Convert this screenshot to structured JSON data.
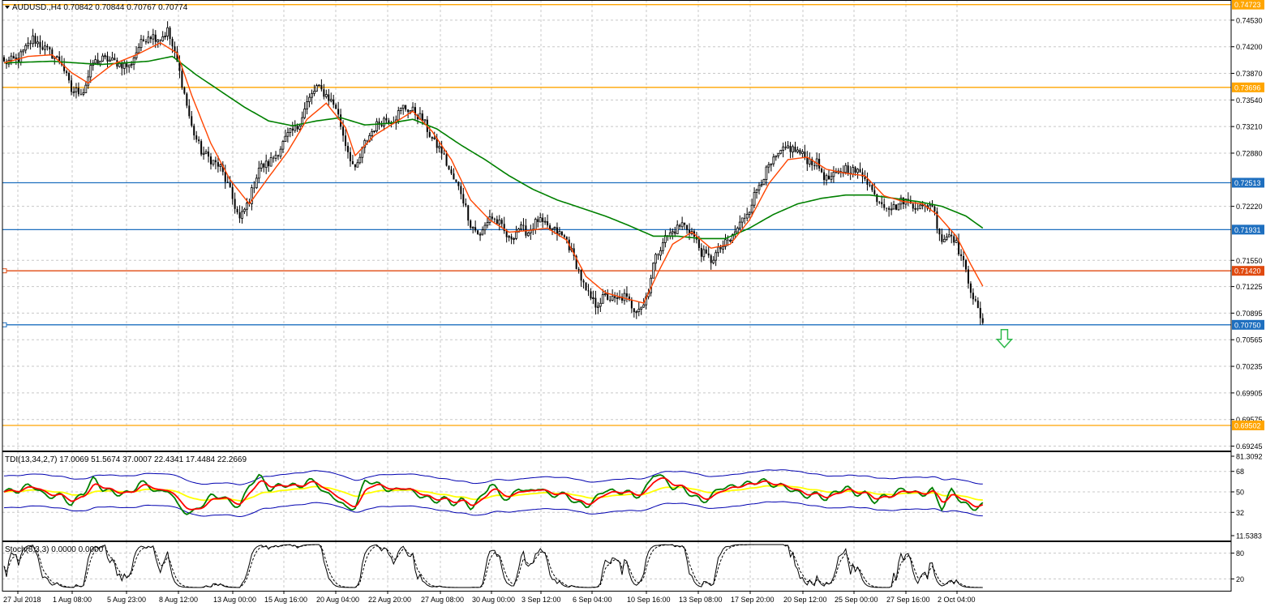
{
  "window": {
    "symbol_title": "AUDUSD.,H4  0.70842 0.70844 0.70767 0.70774"
  },
  "colors": {
    "background": "#ffffff",
    "grid": "#c8c8c8",
    "candle": "#000000",
    "ema_fast": "#ff4500",
    "ma_slow": "#008000",
    "level_orange": "#ffa500",
    "level_blue": "#1e6fbf",
    "level_red": "#e04a10",
    "tdi_band": "#0000b0",
    "tdi_signal": "#ffff00",
    "tdi_rsi_fast": "#008000",
    "tdi_rsi_slow": "#ff0000",
    "arrow": "#2db84a"
  },
  "chart_data": {
    "type": "candlestick",
    "symbol": "AUDUSD.",
    "timeframe": "H4",
    "ohlc_last": {
      "open": 0.70842,
      "high": 0.70844,
      "low": 0.70767,
      "close": 0.70774
    },
    "x_ticks": [
      "27 Jul 2018",
      "1 Aug 08:00",
      "5 Aug 23:00",
      "8 Aug 12:00",
      "13 Aug 00:00",
      "15 Aug 16:00",
      "20 Aug 04:00",
      "22 Aug 20:00",
      "27 Aug 08:00",
      "30 Aug 00:00",
      "3 Sep 12:00",
      "6 Sep 04:00",
      "10 Sep 16:00",
      "13 Sep 08:00",
      "17 Sep 20:00",
      "20 Sep 12:00",
      "25 Sep 00:00",
      "27 Sep 16:00",
      "2 Oct 04:00"
    ],
    "y_ticks": [
      "0.74530",
      "0.74200",
      "0.73870",
      "0.73540",
      "0.73210",
      "0.72880",
      "0.72220",
      "0.71550",
      "0.71225",
      "0.70895",
      "0.70565",
      "0.70235",
      "0.69905",
      "0.69575",
      "0.69245"
    ],
    "ylim": [
      0.6919,
      0.7478
    ],
    "levels": [
      {
        "label": "0.74723",
        "value": 0.74723,
        "color": "#ffa500"
      },
      {
        "label": "0.73696",
        "value": 0.73696,
        "color": "#ffa500"
      },
      {
        "label": "0.72513",
        "value": 0.72513,
        "color": "#1e6fbf"
      },
      {
        "label": "0.71931",
        "value": 0.71931,
        "color": "#1e6fbf"
      },
      {
        "label": "0.71420",
        "value": 0.7142,
        "color": "#e04a10"
      },
      {
        "label": "0.70750",
        "value": 0.7075,
        "color": "#1e6fbf"
      },
      {
        "label": "0.69502",
        "value": 0.69502,
        "color": "#ffa500"
      }
    ],
    "close_anchors": [
      [
        0,
        0.74
      ],
      [
        6,
        0.7405
      ],
      [
        12,
        0.743
      ],
      [
        18,
        0.7415
      ],
      [
        24,
        0.74
      ],
      [
        28,
        0.7365
      ],
      [
        33,
        0.7365
      ],
      [
        37,
        0.74
      ],
      [
        42,
        0.7405
      ],
      [
        47,
        0.74
      ],
      [
        52,
        0.7395
      ],
      [
        56,
        0.742
      ],
      [
        60,
        0.7435
      ],
      [
        65,
        0.743
      ],
      [
        68,
        0.744
      ],
      [
        72,
        0.74
      ],
      [
        74,
        0.7375
      ],
      [
        78,
        0.732
      ],
      [
        82,
        0.729
      ],
      [
        86,
        0.728
      ],
      [
        90,
        0.727
      ],
      [
        94,
        0.724
      ],
      [
        98,
        0.7205
      ],
      [
        102,
        0.723
      ],
      [
        106,
        0.727
      ],
      [
        110,
        0.7275
      ],
      [
        114,
        0.729
      ],
      [
        118,
        0.731
      ],
      [
        122,
        0.732
      ],
      [
        126,
        0.735
      ],
      [
        130,
        0.737
      ],
      [
        134,
        0.736
      ],
      [
        138,
        0.7345
      ],
      [
        142,
        0.73
      ],
      [
        146,
        0.7265
      ],
      [
        150,
        0.73
      ],
      [
        154,
        0.732
      ],
      [
        158,
        0.733
      ],
      [
        162,
        0.733
      ],
      [
        166,
        0.7345
      ],
      [
        170,
        0.734
      ],
      [
        174,
        0.733
      ],
      [
        178,
        0.7305
      ],
      [
        182,
        0.729
      ],
      [
        186,
        0.726
      ],
      [
        190,
        0.724
      ],
      [
        194,
        0.72
      ],
      [
        198,
        0.7185
      ],
      [
        202,
        0.721
      ],
      [
        206,
        0.72
      ],
      [
        210,
        0.718
      ],
      [
        214,
        0.7195
      ],
      [
        218,
        0.719
      ],
      [
        222,
        0.7205
      ],
      [
        226,
        0.7195
      ],
      [
        230,
        0.719
      ],
      [
        234,
        0.718
      ],
      [
        238,
        0.715
      ],
      [
        242,
        0.7115
      ],
      [
        246,
        0.71
      ],
      [
        250,
        0.711
      ],
      [
        254,
        0.7105
      ],
      [
        258,
        0.711
      ],
      [
        262,
        0.7095
      ],
      [
        266,
        0.71
      ],
      [
        268,
        0.712
      ],
      [
        270,
        0.715
      ],
      [
        274,
        0.718
      ],
      [
        278,
        0.719
      ],
      [
        282,
        0.72
      ],
      [
        286,
        0.719
      ],
      [
        290,
        0.7165
      ],
      [
        294,
        0.7155
      ],
      [
        298,
        0.717
      ],
      [
        302,
        0.718
      ],
      [
        306,
        0.72
      ],
      [
        310,
        0.722
      ],
      [
        314,
        0.725
      ],
      [
        318,
        0.727
      ],
      [
        322,
        0.7285
      ],
      [
        326,
        0.7295
      ],
      [
        330,
        0.729
      ],
      [
        334,
        0.728
      ],
      [
        338,
        0.7275
      ],
      [
        342,
        0.7255
      ],
      [
        346,
        0.726
      ],
      [
        350,
        0.727
      ],
      [
        354,
        0.7265
      ],
      [
        358,
        0.726
      ],
      [
        362,
        0.7235
      ],
      [
        366,
        0.7225
      ],
      [
        370,
        0.722
      ],
      [
        374,
        0.723
      ],
      [
        378,
        0.7225
      ],
      [
        382,
        0.722
      ],
      [
        386,
        0.7225
      ],
      [
        388,
        0.72
      ],
      [
        390,
        0.718
      ],
      [
        394,
        0.719
      ],
      [
        398,
        0.716
      ],
      [
        402,
        0.712
      ],
      [
        404,
        0.71
      ],
      [
        406,
        0.7085
      ],
      [
        407,
        0.70774
      ]
    ],
    "ema_fast_anchors": [
      [
        0,
        0.74
      ],
      [
        10,
        0.7408
      ],
      [
        20,
        0.741
      ],
      [
        28,
        0.7388
      ],
      [
        35,
        0.7375
      ],
      [
        45,
        0.7398
      ],
      [
        55,
        0.741
      ],
      [
        65,
        0.7425
      ],
      [
        72,
        0.7412
      ],
      [
        78,
        0.736
      ],
      [
        86,
        0.73
      ],
      [
        94,
        0.7255
      ],
      [
        102,
        0.7225
      ],
      [
        110,
        0.7258
      ],
      [
        118,
        0.729
      ],
      [
        126,
        0.733
      ],
      [
        134,
        0.735
      ],
      [
        142,
        0.732
      ],
      [
        146,
        0.7285
      ],
      [
        154,
        0.731
      ],
      [
        162,
        0.7325
      ],
      [
        170,
        0.734
      ],
      [
        178,
        0.7315
      ],
      [
        186,
        0.728
      ],
      [
        194,
        0.723
      ],
      [
        202,
        0.7205
      ],
      [
        210,
        0.719
      ],
      [
        218,
        0.7192
      ],
      [
        226,
        0.7195
      ],
      [
        234,
        0.718
      ],
      [
        242,
        0.7135
      ],
      [
        250,
        0.7115
      ],
      [
        258,
        0.7108
      ],
      [
        266,
        0.7102
      ],
      [
        272,
        0.714
      ],
      [
        278,
        0.7175
      ],
      [
        286,
        0.719
      ],
      [
        294,
        0.717
      ],
      [
        302,
        0.7175
      ],
      [
        310,
        0.7205
      ],
      [
        318,
        0.725
      ],
      [
        326,
        0.728
      ],
      [
        334,
        0.7283
      ],
      [
        342,
        0.7268
      ],
      [
        350,
        0.7263
      ],
      [
        358,
        0.726
      ],
      [
        366,
        0.7235
      ],
      [
        374,
        0.7228
      ],
      [
        382,
        0.7225
      ],
      [
        388,
        0.7212
      ],
      [
        396,
        0.7185
      ],
      [
        402,
        0.715
      ],
      [
        407,
        0.7123
      ]
    ],
    "ma_slow_anchors": [
      [
        0,
        0.74
      ],
      [
        20,
        0.7402
      ],
      [
        40,
        0.7398
      ],
      [
        60,
        0.7402
      ],
      [
        70,
        0.7408
      ],
      [
        80,
        0.7385
      ],
      [
        90,
        0.7365
      ],
      [
        100,
        0.7345
      ],
      [
        110,
        0.7328
      ],
      [
        120,
        0.7322
      ],
      [
        130,
        0.7328
      ],
      [
        140,
        0.7332
      ],
      [
        150,
        0.7323
      ],
      [
        160,
        0.7325
      ],
      [
        170,
        0.733
      ],
      [
        180,
        0.7318
      ],
      [
        190,
        0.7298
      ],
      [
        200,
        0.728
      ],
      [
        210,
        0.726
      ],
      [
        220,
        0.7243
      ],
      [
        230,
        0.723
      ],
      [
        240,
        0.722
      ],
      [
        250,
        0.721
      ],
      [
        260,
        0.7198
      ],
      [
        270,
        0.7185
      ],
      [
        280,
        0.7185
      ],
      [
        290,
        0.7182
      ],
      [
        300,
        0.7182
      ],
      [
        310,
        0.7195
      ],
      [
        320,
        0.7212
      ],
      [
        330,
        0.7225
      ],
      [
        340,
        0.7232
      ],
      [
        350,
        0.7236
      ],
      [
        360,
        0.7236
      ],
      [
        370,
        0.7232
      ],
      [
        380,
        0.7228
      ],
      [
        390,
        0.7222
      ],
      [
        400,
        0.721
      ],
      [
        407,
        0.7195
      ]
    ],
    "tdi": {
      "label": "TDI(13,34,2,7) 17.0069 51.5674 37.0007 22.4341 17.4484 22.2669",
      "y_ticks": [
        "81.3092",
        "68",
        "50",
        "32",
        "11.5383"
      ],
      "ylim": [
        11.5383,
        81.3092
      ]
    },
    "stoch": {
      "label": "Stoch(8,3,3) 0.0000 0.0000",
      "y_ticks": [
        "80",
        "20"
      ],
      "ylim": [
        0,
        100
      ]
    },
    "annotations": [
      {
        "type": "down-arrow",
        "bar": 416,
        "value": 0.7057
      }
    ]
  }
}
